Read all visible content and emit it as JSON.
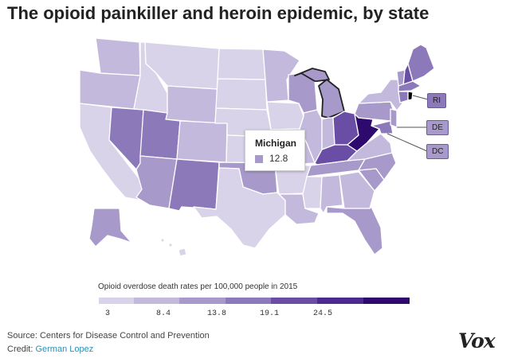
{
  "title": "The opioid painkiller and heroin epidemic, by state",
  "colors": {
    "c1": "#d8d3e8",
    "c2": "#c2b9dc",
    "c3": "#a899cb",
    "c4": "#8c79ba",
    "c5": "#6a4ea6",
    "c6": "#4d2a8f",
    "c7": "#2e0a6e",
    "selected_outline": "#222222"
  },
  "tooltip": {
    "state": "Michigan",
    "value": "12.8"
  },
  "badges": {
    "ri": "RI",
    "de": "DE",
    "dc": "DC"
  },
  "states": {
    "WA": "c2",
    "OR": "c2",
    "CA": "c1",
    "NV": "c4",
    "ID": "c1",
    "MT": "c1",
    "WY": "c2",
    "UT": "c4",
    "AZ": "c3",
    "CO": "c2",
    "NM": "c4",
    "ND": "c1",
    "SD": "c1",
    "NE": "c1",
    "KS": "c1",
    "OK": "c3",
    "TX": "c1",
    "MN": "c2",
    "IA": "c1",
    "MO": "c2",
    "AR": "c1",
    "LA": "c2",
    "WI": "c3",
    "IL": "c2",
    "MI": "c3",
    "IN": "c2",
    "OH": "c5",
    "KY": "c5",
    "TN": "c3",
    "MS": "c1",
    "AL": "c2",
    "GA": "c2",
    "FL": "c3",
    "SC": "c3",
    "NC": "c3",
    "VA": "c2",
    "WV": "c7",
    "PA": "c3",
    "NY": "c2",
    "VT": "c3",
    "NH": "c5",
    "ME": "c4",
    "MA": "c4",
    "CT": "c4",
    "NJ": "c3",
    "MD": "c4",
    "AK": "c3",
    "HI": "c1"
  },
  "legend": {
    "label": "Opioid overdose death rates per 100,000 people in 2015",
    "ticks": [
      "3",
      "8.4",
      "13.8",
      "19.1",
      "24.5"
    ]
  },
  "source": "Source: Centers for Disease Control and Prevention",
  "credit_prefix": "Credit: ",
  "credit_name": "German Lopez",
  "logo": "Vox"
}
